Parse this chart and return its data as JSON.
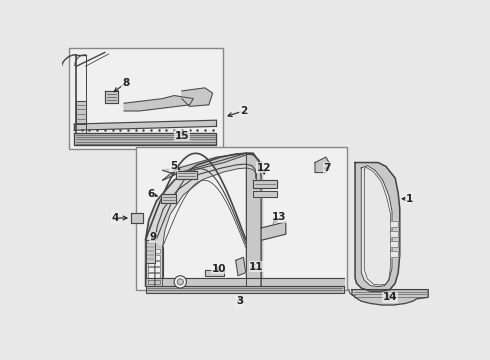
{
  "bg_color": "#e8e8e8",
  "box_bg": "#f0f0f0",
  "white": "#ffffff",
  "line_color": "#444444",
  "dark": "#222222",
  "part_fill": "#c8c8c8",
  "part_fill2": "#b8b8b8",
  "label_color": "#111111"
}
